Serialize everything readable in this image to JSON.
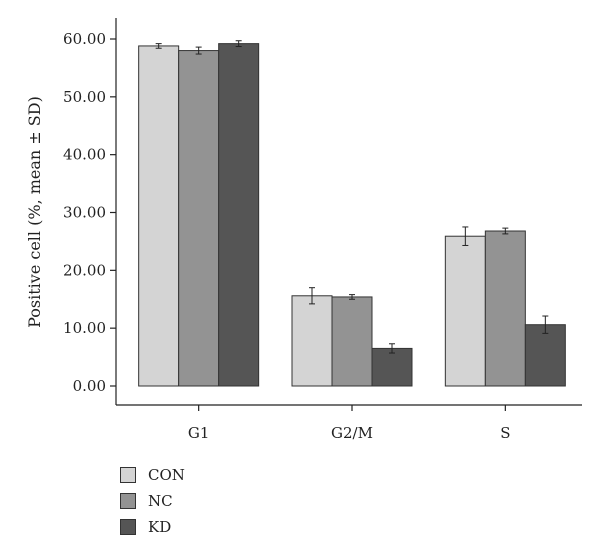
{
  "chart_data": {
    "type": "bar",
    "categories": [
      "G1",
      "G2/M",
      "S"
    ],
    "series": [
      {
        "name": "CON",
        "color": "#d4d4d4",
        "values": [
          58.8,
          15.6,
          25.9
        ],
        "errors": [
          0.4,
          1.4,
          1.6
        ]
      },
      {
        "name": "NC",
        "color": "#939393",
        "values": [
          58.0,
          15.4,
          26.8
        ],
        "errors": [
          0.6,
          0.4,
          0.5
        ]
      },
      {
        "name": "KD",
        "color": "#555555",
        "values": [
          59.2,
          6.5,
          10.6
        ],
        "errors": [
          0.5,
          0.8,
          1.5
        ]
      }
    ],
    "ylabel": "Positive cell (%, mean ± SD)",
    "xlabel": "",
    "ylim": [
      0,
      60
    ],
    "yticks": [
      "0.00",
      "10.00",
      "20.00",
      "30.00",
      "40.00",
      "50.00",
      "60.00"
    ],
    "legend_position": "bottom-left",
    "grid": false
  }
}
